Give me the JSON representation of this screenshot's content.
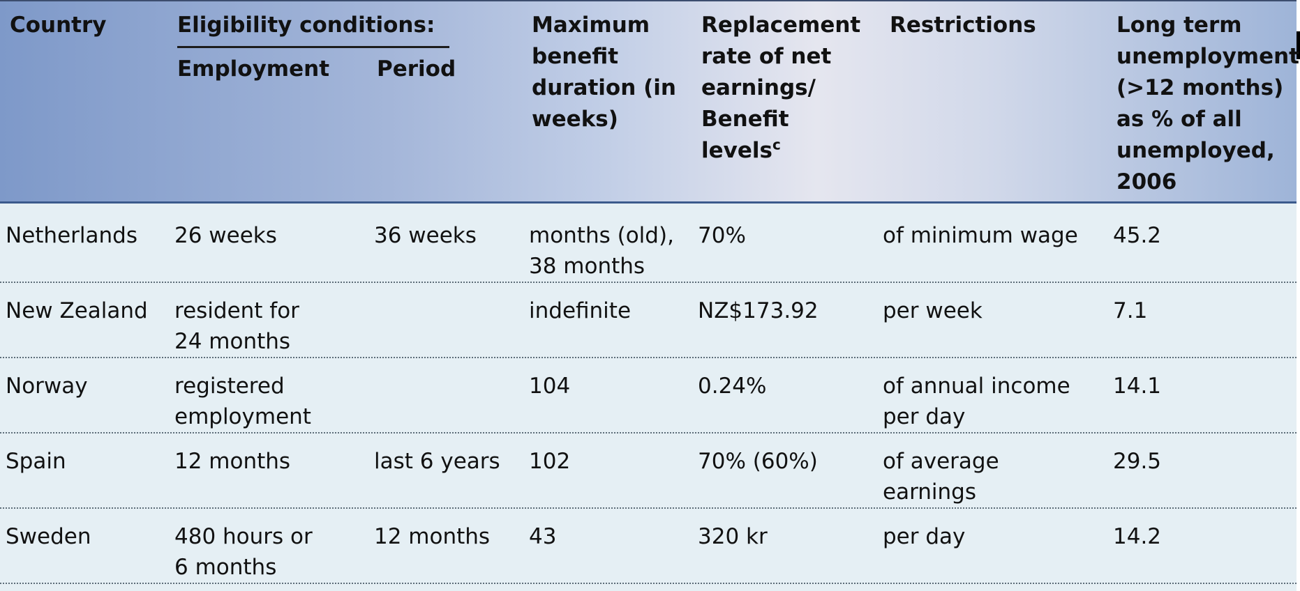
{
  "header": {
    "country": "Country",
    "eligibility": "Eligibility conditions:",
    "employment": "Employment",
    "period": "Period",
    "max_duration": "Maximum\nbenefit\nduration (in\nweeks)",
    "replacement": "Replacement\nrate of net\nearnings/\nBenefit\nlevels",
    "replacement_sup": "c",
    "restrictions": "Restrictions",
    "long_term": "Long term\nunemployment\n(>12 months)\nas % of all\nunemployed,\n2006"
  },
  "rows": [
    {
      "country": "Netherlands",
      "employment": "26 weeks",
      "period": "36 weeks",
      "duration": "months (old),\n38 months",
      "rate": "70%",
      "restriction": "of minimum wage",
      "long_term": "45.2"
    },
    {
      "country": "New Zealand",
      "employment": "resident for\n24 months",
      "period": "",
      "duration": "indefinite",
      "rate": "NZ$173.92",
      "restriction": "per week",
      "long_term": "7.1"
    },
    {
      "country": "Norway",
      "employment": "registered\nemployment",
      "period": "",
      "duration": " 104",
      "rate": "0.24%",
      "restriction": "of annual income\nper day",
      "long_term": "14.1"
    },
    {
      "country": "Spain",
      "employment": "12 months",
      "period": "last 6 years",
      "duration": " 102",
      "rate": "70% (60%)",
      "restriction": "of average\nearnings",
      "long_term": "29.5"
    },
    {
      "country": "Sweden",
      "employment": "480 hours or\n6 months",
      "period": "12 months",
      "duration": "  43",
      "rate": "320 kr",
      "restriction": "per day",
      "long_term": "14.2"
    }
  ],
  "colors": {
    "header_start": "#7e99c9",
    "header_mid": "#e5e6ef",
    "body_bg": "#e5eff4",
    "header_rule": "#3b5a8c"
  }
}
